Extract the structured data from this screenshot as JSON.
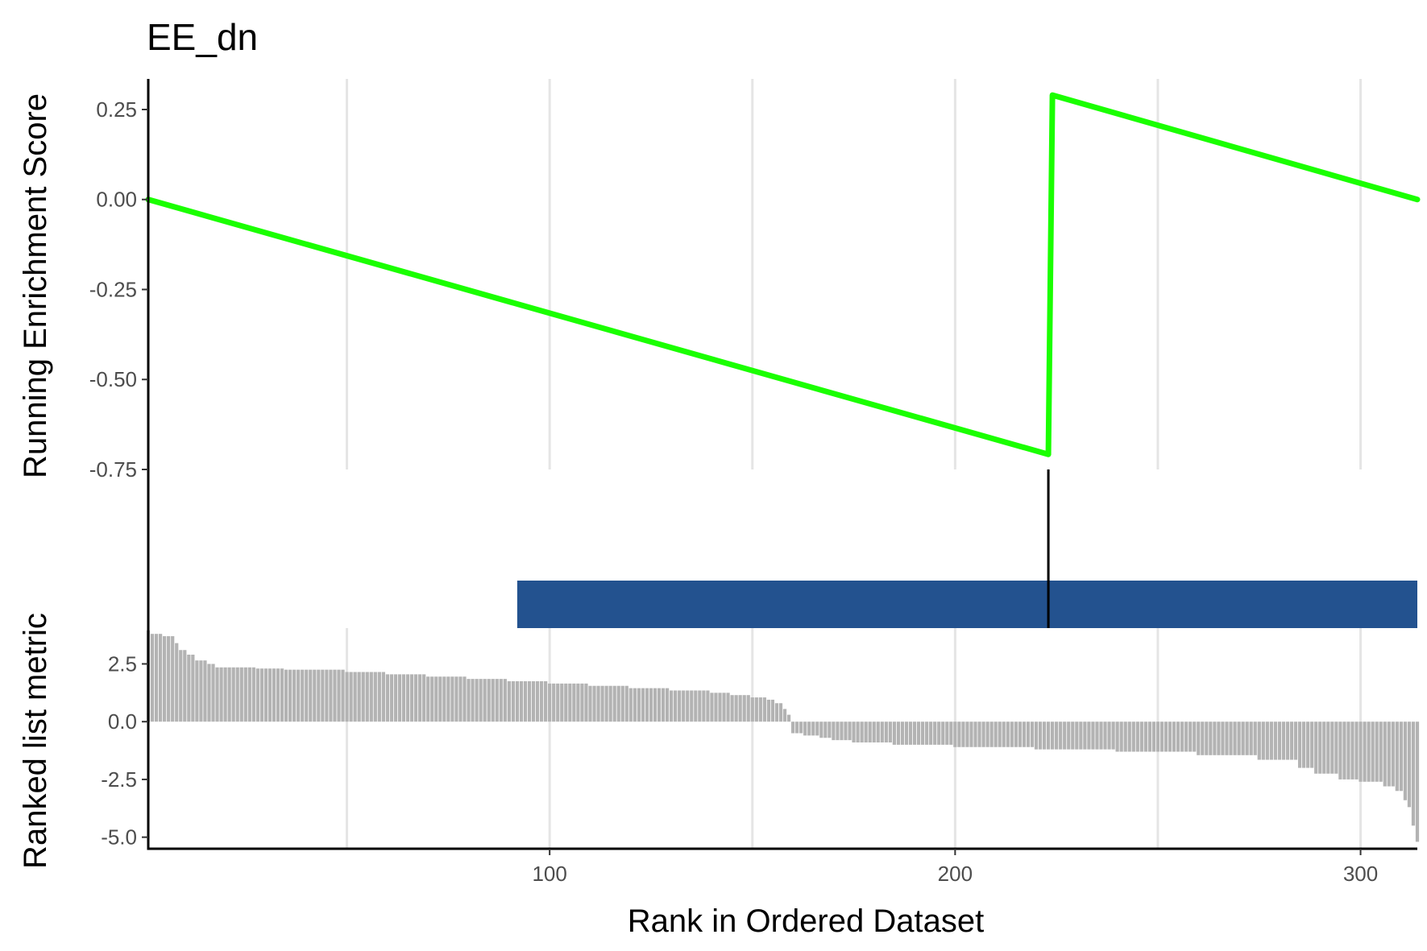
{
  "chart_data": {
    "title": "EE_dn",
    "type": "line",
    "xlabel": "Rank in Ordered Dataset",
    "xlim": [
      1,
      314
    ],
    "x_ticks": [
      100,
      200,
      300
    ],
    "x_tick_labels": [
      "100",
      "200",
      "300"
    ],
    "x_gridlines": [
      50,
      100,
      150,
      200,
      250,
      300
    ],
    "panels": {
      "running_es": {
        "ylabel": "Running Enrichment Score",
        "ylim": [
          -0.75,
          0.335
        ],
        "y_ticks": [
          0.25,
          0.0,
          -0.25,
          -0.5,
          -0.75
        ],
        "y_tick_labels": [
          "0.25",
          "0.00",
          "-0.25",
          "-0.50",
          "-0.75"
        ],
        "line_color": "#1aff00",
        "points": [
          {
            "x": 1,
            "y": 0.0
          },
          {
            "x": 223,
            "y": -0.708
          },
          {
            "x": 224,
            "y": 0.29
          },
          {
            "x": 314,
            "y": 0.0
          }
        ]
      },
      "hits": {
        "hit_positions": [
          223
        ],
        "hit_color": "#000000",
        "bar_color": "#23528f",
        "bar_range": [
          92,
          314
        ]
      },
      "ranked_metric": {
        "ylabel": "Ranked list metric",
        "ylim": [
          -5.5,
          4.05
        ],
        "y_ticks": [
          2.5,
          0.0,
          -2.5,
          -5.0
        ],
        "y_tick_labels": [
          "2.5",
          "0.0",
          "-2.5",
          "-5.0"
        ],
        "bar_color": "#b3b3b3",
        "breakpoints": [
          [
            1,
            3.95
          ],
          [
            2,
            3.8
          ],
          [
            5,
            3.7
          ],
          [
            8,
            3.4
          ],
          [
            9,
            3.1
          ],
          [
            11,
            2.9
          ],
          [
            13,
            2.65
          ],
          [
            16,
            2.5
          ],
          [
            18,
            2.35
          ],
          [
            28,
            2.3
          ],
          [
            35,
            2.25
          ],
          [
            50,
            2.15
          ],
          [
            60,
            2.05
          ],
          [
            70,
            1.95
          ],
          [
            80,
            1.85
          ],
          [
            90,
            1.75
          ],
          [
            100,
            1.65
          ],
          [
            110,
            1.55
          ],
          [
            120,
            1.45
          ],
          [
            130,
            1.35
          ],
          [
            140,
            1.25
          ],
          [
            145,
            1.15
          ],
          [
            150,
            1.05
          ],
          [
            154,
            0.95
          ],
          [
            156,
            0.8
          ],
          [
            158,
            0.55
          ],
          [
            159,
            0.3
          ],
          [
            160,
            -0.5
          ],
          [
            163,
            -0.6
          ],
          [
            167,
            -0.7
          ],
          [
            170,
            -0.8
          ],
          [
            175,
            -0.9
          ],
          [
            185,
            -1.0
          ],
          [
            200,
            -1.1
          ],
          [
            220,
            -1.2
          ],
          [
            240,
            -1.3
          ],
          [
            260,
            -1.45
          ],
          [
            275,
            -1.65
          ],
          [
            285,
            -2.0
          ],
          [
            289,
            -2.25
          ],
          [
            295,
            -2.5
          ],
          [
            300,
            -2.6
          ],
          [
            306,
            -2.8
          ],
          [
            309,
            -3.0
          ],
          [
            311,
            -3.4
          ],
          [
            312,
            -3.7
          ],
          [
            313,
            -4.5
          ],
          [
            314,
            -5.2
          ]
        ]
      }
    }
  }
}
